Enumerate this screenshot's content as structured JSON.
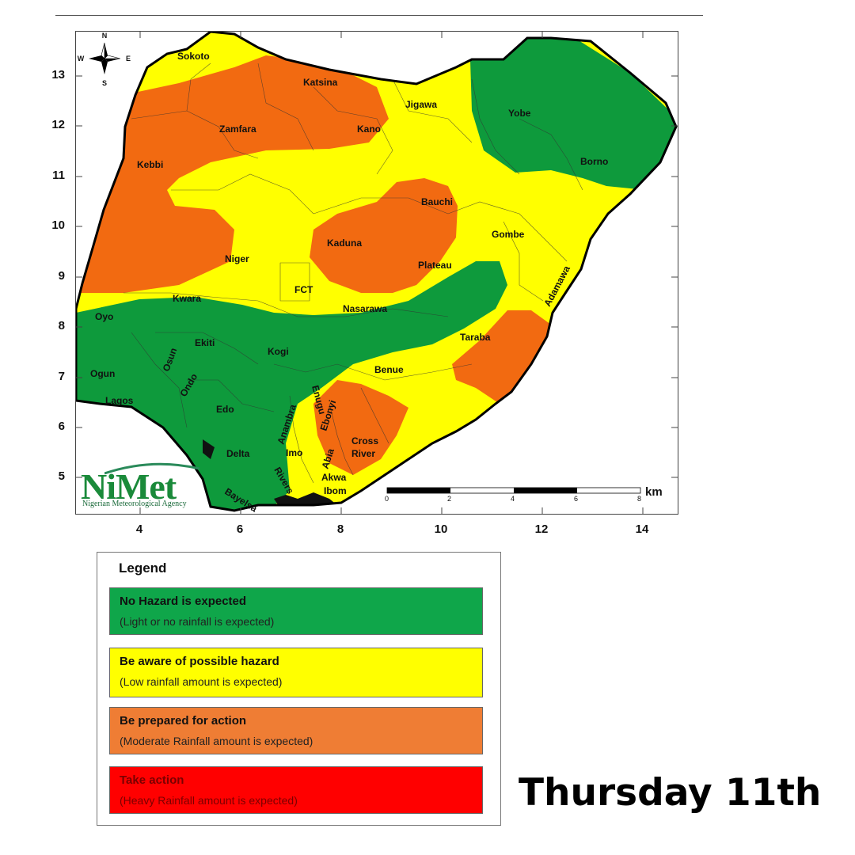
{
  "map": {
    "latitude_ticks": [
      "13",
      "12",
      "11",
      "10",
      "9",
      "8",
      "7",
      "6",
      "5"
    ],
    "longitude_ticks": [
      "4",
      "6",
      "8",
      "10",
      "12",
      "14"
    ],
    "compass": {
      "n": "N",
      "s": "S",
      "e": "E",
      "w": "W"
    },
    "scale_bar": {
      "ticks": [
        "0",
        "2",
        "4",
        "6",
        "8"
      ],
      "unit": "km"
    },
    "states": {
      "sokoto": "Sokoto",
      "katsina": "Katsina",
      "jigawa": "Jigawa",
      "yobe": "Yobe",
      "zamfara": "Zamfara",
      "kano": "Kano",
      "borno": "Borno",
      "kebbi": "Kebbi",
      "bauchi": "Bauchi",
      "gombe": "Gombe",
      "kaduna": "Kaduna",
      "niger": "Niger",
      "plateau": "Plateau",
      "fct": "FCT",
      "adamawa": "Adamawa",
      "kwara": "Kwara",
      "nasarawa": "Nasarawa",
      "oyo": "Oyo",
      "taraba": "Taraba",
      "ekiti": "Ekiti",
      "osun": "Osun",
      "kogi": "Kogi",
      "ogun": "Ogun",
      "ondo": "Ondo",
      "benue": "Benue",
      "lagos": "Lagos",
      "enugu": "Enugu",
      "edo": "Edo",
      "anambra": "Anambra",
      "ebonyi": "Ebonyi",
      "cross_river": [
        "Cross",
        "River"
      ],
      "delta": "Delta",
      "imo": "Imo",
      "abia": "Abia",
      "rivers": "Rivers",
      "bayelsa": "Bayelsa",
      "akwa_ibom": [
        "Akwa",
        "Ibom"
      ]
    },
    "colors": {
      "green": "#0e9a3c",
      "yellow": "#ffff00",
      "orange": "#f26a11",
      "red": "#ff0000"
    }
  },
  "logo": {
    "name": "NiMet",
    "subtitle": "Nigerian Meteorological Agency"
  },
  "legend": {
    "title": "Legend",
    "items": [
      {
        "label": "No Hazard is expected",
        "sublabel": "(Light or no rainfall is expected)",
        "color": "#0fa64a"
      },
      {
        "label": "Be aware of possible hazard",
        "sublabel": "(Low rainfall amount is expected)",
        "color": "#ffff00"
      },
      {
        "label": "Be prepared for action",
        "sublabel": "(Moderate Rainfall amount is expected)",
        "color": "#ef7d34"
      },
      {
        "label": "Take action",
        "sublabel": "(Heavy Rainfall amount is expected)",
        "color": "#ff0000"
      }
    ]
  },
  "day": "Thursday 11th"
}
